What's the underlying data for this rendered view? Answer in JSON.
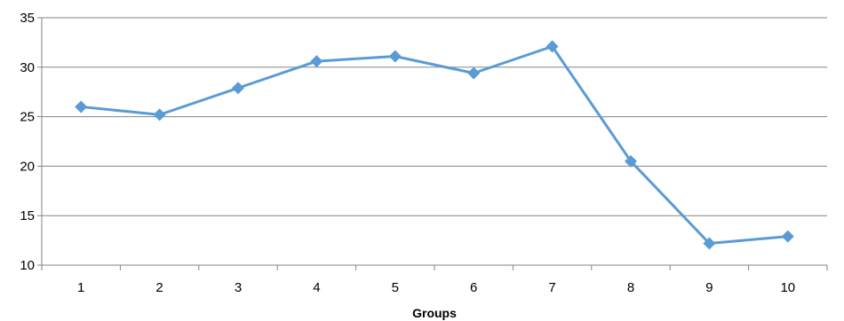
{
  "chart_data": {
    "type": "line",
    "title": "",
    "xlabel": "Groups",
    "ylabel": "",
    "categories": [
      "1",
      "2",
      "3",
      "4",
      "5",
      "6",
      "7",
      "8",
      "9",
      "10"
    ],
    "series": [
      {
        "values": [
          26.0,
          25.2,
          27.9,
          30.6,
          31.1,
          29.4,
          32.1,
          20.5,
          12.2,
          12.9
        ]
      }
    ],
    "ylim": [
      10,
      35
    ],
    "yticks": [
      10,
      15,
      20,
      25,
      30,
      35
    ],
    "grid": true,
    "legend": "none",
    "colors": {
      "series": "#5B9BD5",
      "grid": "#868686",
      "axis": "#868686"
    }
  }
}
